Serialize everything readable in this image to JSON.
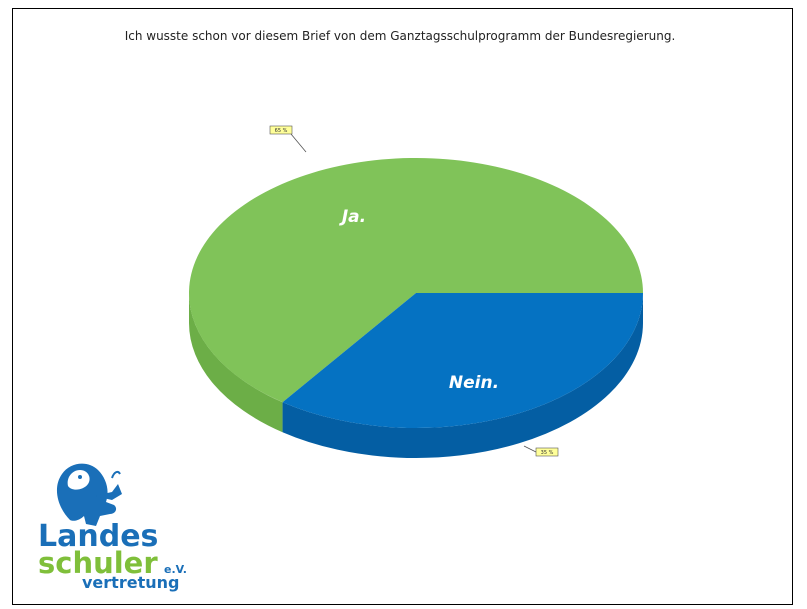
{
  "chart_data": {
    "type": "pie",
    "title": "Ich wusste schon vor diesem Brief von dem Ganztagsschulprogramm der Bundesregierung.",
    "slices": [
      {
        "label": "Ja.",
        "value": 65,
        "pct_label": "65 %",
        "color": "#80c359",
        "side_color": "#6cae47"
      },
      {
        "label": "Nein.",
        "value": 35,
        "pct_label": "35 %",
        "color": "#0572c2",
        "side_color": "#045ea3"
      }
    ]
  },
  "logo": {
    "line1": "Landes",
    "line2": "schuler",
    "suffix": "e.V.",
    "line3": "vertretung",
    "blue": "#1a6fb8",
    "green": "#7fbf3a"
  }
}
